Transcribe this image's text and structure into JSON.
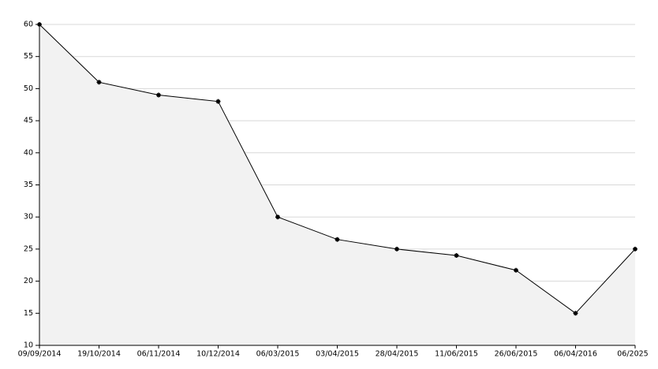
{
  "chart_data": {
    "type": "area-line",
    "categories": [
      "09/09/2014",
      "19/10/2014",
      "06/11/2014",
      "10/12/2014",
      "06/03/2015",
      "03/04/2015",
      "28/04/2015",
      "11/06/2015",
      "26/06/2015",
      "06/04/2016",
      "06/2025"
    ],
    "values": [
      60,
      51,
      49,
      48,
      30,
      26.5,
      25,
      24,
      21.7,
      15,
      25
    ],
    "color": "#000000",
    "fill": "#f2f2f2",
    "ylim": [
      10,
      60
    ],
    "yticks": [
      10,
      15,
      20,
      25,
      30,
      35,
      40,
      45,
      50,
      55,
      60
    ],
    "grid": true
  }
}
